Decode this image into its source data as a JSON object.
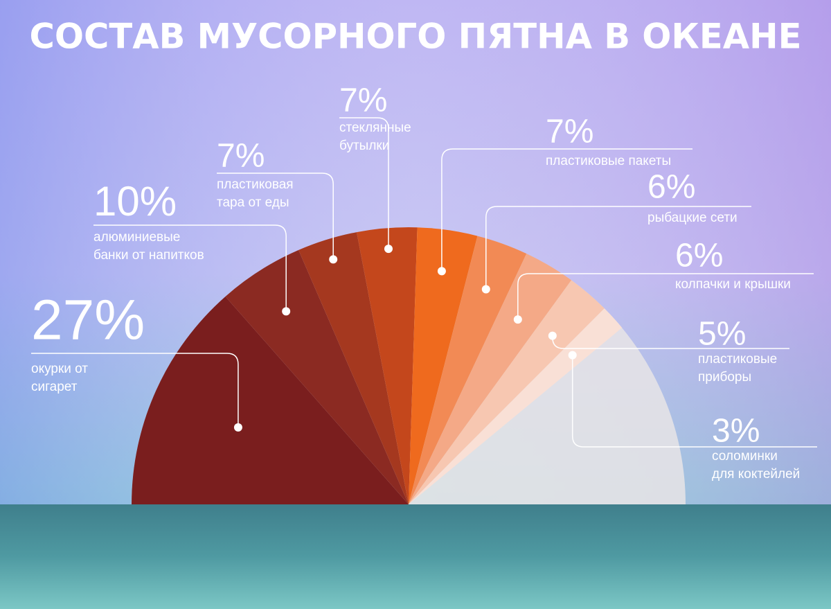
{
  "chart_data": {
    "type": "half-pie",
    "title": "СОСТАВ МУСОРНОГО ПЯТНА В ОКЕАНЕ",
    "categories": [
      "окурки от\nсигарет",
      "алюминиевые\nбанки от напитков",
      "пластиковая\nтара от еды",
      "стеклянные\nбутылки",
      "пластиковые пакеты",
      "рыбацкие сети",
      "колпачки и крышки",
      "пластиковые\nприборы",
      "соломинки\nдля коктейлей"
    ],
    "values": [
      27,
      10,
      7,
      7,
      7,
      6,
      6,
      5,
      3
    ],
    "value_labels": [
      "27%",
      "10%",
      "7%",
      "7%",
      "7%",
      "6%",
      "6%",
      "5%",
      "3%"
    ],
    "colors": [
      "#7a1e1e",
      "#8b2a22",
      "#a5381f",
      "#c4471c",
      "#ef6a1e",
      "#f28a55",
      "#f4a987",
      "#f7c7b1",
      "#f9e0d6"
    ]
  }
}
